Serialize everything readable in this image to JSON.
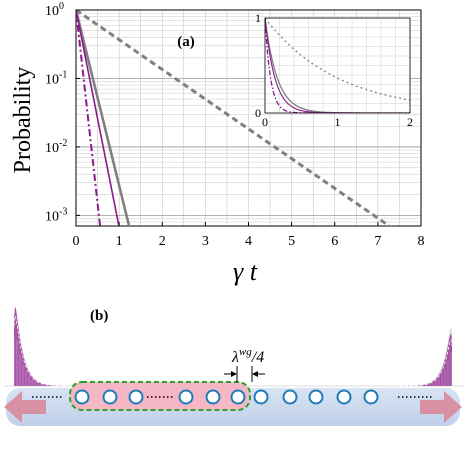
{
  "panel_a": {
    "label": "(a)",
    "ylabel": "Probability",
    "xlabel": "γ t",
    "y_ticks": [
      {
        "base": "10",
        "exp": "0",
        "value": 1
      },
      {
        "base": "10",
        "exp": "-1",
        "value": 0.1
      },
      {
        "base": "10",
        "exp": "-2",
        "value": 0.01
      },
      {
        "base": "10",
        "exp": "-3",
        "value": 0.001
      }
    ],
    "x_ticks": [
      "0",
      "1",
      "2",
      "3",
      "4",
      "5",
      "6",
      "7",
      "8"
    ],
    "inset": {
      "x_ticks": [
        "0",
        "1",
        "2"
      ],
      "y_ticks": [
        "0",
        "1"
      ]
    }
  },
  "chart_data": {
    "type": "line",
    "xlim": [
      0,
      8
    ],
    "ylim": [
      0.0007,
      1
    ],
    "yscale": "log",
    "grid": true,
    "series": [
      {
        "style": "dashed",
        "color": "#808080",
        "rate": 1.0
      },
      {
        "style": "solid",
        "color": "#808080",
        "rate": 5.9
      },
      {
        "style": "solid",
        "color": "#8b1a8b",
        "rate": 7.3
      },
      {
        "style": "dashdot",
        "color": "#8b1a8b",
        "rate": 13.0
      }
    ],
    "inset": {
      "xlim": [
        0,
        2
      ],
      "ylim": [
        0,
        1
      ],
      "yscale": "linear"
    }
  },
  "panel_b": {
    "label": "(b)",
    "spacing_base": "λ",
    "spacing_sup": "wg",
    "spacing_rest": "/4",
    "colors": {
      "atom_ring": "#1f7ab5",
      "box_fill": "#f5b7c5",
      "box_border": "#2aa02a",
      "waveguide": "#c8d8ee",
      "arrow": "#d98a9a",
      "pulse": "#9a3b9a"
    }
  }
}
